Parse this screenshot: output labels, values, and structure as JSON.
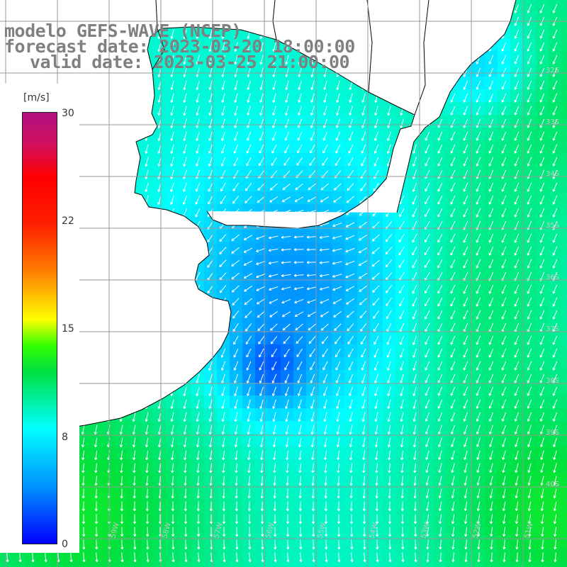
{
  "title": {
    "model": "modelo GEFS-WAVE (NCEP)",
    "forecast": "forecast date: 2023-03-20 18:00:00",
    "valid": "valid date: 2023-03-25 21:00:00"
  },
  "colorbar": {
    "unit": "[m/s]",
    "ticks": [
      "30",
      "22",
      "15",
      "8",
      "0"
    ],
    "colors": [
      "#0000ff",
      "#0090ff",
      "#00ffff",
      "#00e040",
      "#33ff00",
      "#ffff00",
      "#ff8000",
      "#ff0000",
      "#b01080"
    ]
  },
  "map": {
    "lat_labels": [
      "32S",
      "33S",
      "34S",
      "35S",
      "36S",
      "37S",
      "38S",
      "39S",
      "40S"
    ],
    "lon_labels": [
      "61W",
      "60W",
      "59W",
      "58W",
      "57W",
      "56W",
      "55W",
      "54W",
      "53W",
      "52W",
      "51W"
    ],
    "land_color": "#ffffff",
    "coast_color": "#000000",
    "grid_color": "#999999",
    "arrow_color": "#ffffff",
    "icons": [
      "wind-arrow-icon"
    ]
  }
}
